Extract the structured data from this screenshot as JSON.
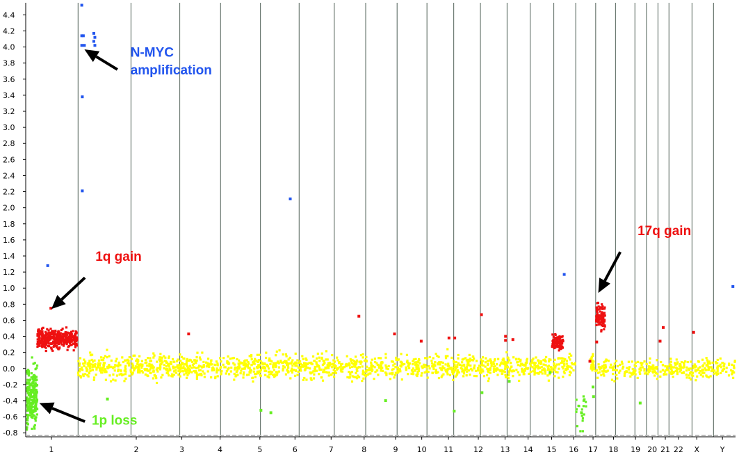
{
  "chart_data": {
    "type": "scatter",
    "ylim": [
      -0.85,
      4.55
    ],
    "y_ticks": [
      "-0.8",
      "-0.6",
      "-0.4",
      "-0.2",
      "0.0",
      "0.2",
      "0.4",
      "0.6",
      "0.8",
      "1.0",
      "1.2",
      "1.4",
      "1.6",
      "1.8",
      "2.0",
      "2.2",
      "2.4",
      "2.6",
      "2.8",
      "3.0",
      "3.2",
      "3.4",
      "3.6",
      "3.8",
      "4.0",
      "4.2",
      "4.4"
    ],
    "x_categories": [
      "1",
      "2",
      "3",
      "4",
      "5",
      "6",
      "7",
      "8",
      "9",
      "10",
      "11",
      "12",
      "13",
      "14",
      "15",
      "16",
      "17",
      "18",
      "19",
      "20",
      "21",
      "22",
      "X",
      "Y"
    ],
    "x_label_positions": [
      0.99,
      2.61,
      3.48,
      4.21,
      4.97,
      5.64,
      6.33,
      6.96,
      7.56,
      8.06,
      8.57,
      9.14,
      9.65,
      10.09,
      10.54,
      10.96,
      11.33,
      11.72,
      12.14,
      12.46,
      12.71,
      12.96,
      13.31,
      13.8
    ],
    "chromosome_boundaries": [
      1.5,
      2.51,
      3.44,
      4.22,
      4.98,
      5.72,
      6.39,
      6.99,
      7.59,
      8.16,
      8.67,
      9.18,
      9.69,
      10.13,
      10.58,
      11.0,
      11.38,
      11.76,
      12.13,
      12.35,
      12.57,
      12.78,
      13.22,
      13.63
    ],
    "x_range": [
      0.5,
      14.05
    ],
    "colors": {
      "neutral": "#ffff00",
      "loss": "#66ee22",
      "gain": "#ee1111",
      "amplification": "#2255ee",
      "boundary": "#6c7a72",
      "arrow": "#000000"
    },
    "series": [
      {
        "name": "amplification",
        "color": "#2255ee",
        "points": [
          [
            1.57,
            4.52
          ],
          [
            1.57,
            4.14
          ],
          [
            1.6,
            4.14
          ],
          [
            1.57,
            4.02
          ],
          [
            1.62,
            4.02
          ],
          [
            1.8,
            4.17
          ],
          [
            1.82,
            4.12
          ],
          [
            1.8,
            4.07
          ],
          [
            1.82,
            4.02
          ],
          [
            1.58,
            3.38
          ],
          [
            1.58,
            2.21
          ],
          [
            0.92,
            1.28
          ],
          [
            5.55,
            2.11
          ],
          [
            10.78,
            1.17
          ],
          [
            14.0,
            1.02
          ]
        ]
      },
      {
        "name": "gain",
        "color": "#ee1111",
        "points": [
          [
            0.98,
            0.75
          ],
          [
            3.61,
            0.43
          ],
          [
            6.86,
            0.65
          ],
          [
            7.54,
            0.43
          ],
          [
            8.05,
            0.34
          ],
          [
            8.58,
            0.38
          ],
          [
            8.69,
            0.38
          ],
          [
            9.2,
            0.67
          ],
          [
            9.66,
            0.4
          ],
          [
            9.66,
            0.35
          ],
          [
            9.8,
            0.36
          ],
          [
            11.4,
            0.33
          ],
          [
            11.27,
            0.09
          ],
          [
            12.61,
            0.34
          ],
          [
            12.67,
            0.51
          ],
          [
            13.25,
            0.45
          ]
        ]
      },
      {
        "name": "loss",
        "color": "#66ee22",
        "points": [
          [
            2.06,
            -0.38
          ],
          [
            4.99,
            -0.52
          ],
          [
            5.18,
            -0.55
          ],
          [
            7.37,
            -0.4
          ],
          [
            8.68,
            -0.53
          ],
          [
            9.21,
            -0.3
          ],
          [
            9.73,
            -0.16
          ],
          [
            10.51,
            -0.05
          ],
          [
            11.11,
            -0.55
          ],
          [
            11.34,
            -0.35
          ],
          [
            11.33,
            -0.23
          ],
          [
            12.23,
            -0.43
          ]
        ]
      }
    ],
    "dense_regions": [
      {
        "color": "#ffff00",
        "x_from": 1.5,
        "x_to": 11.0,
        "y_center": 0.02,
        "y_spread": 0.12,
        "count": 1500
      },
      {
        "color": "#ffff00",
        "x_from": 11.38,
        "x_to": 14.05,
        "y_center": 0.0,
        "y_spread": 0.1,
        "count": 330
      },
      {
        "color": "#ffff00",
        "x_from": 11.28,
        "x_to": 11.36,
        "y_center": 0.05,
        "y_spread": 0.12,
        "count": 25
      },
      {
        "color": "#66ee22",
        "x_from": 0.52,
        "x_to": 0.72,
        "y_center": -0.35,
        "y_spread": 0.3,
        "count": 220
      },
      {
        "color": "#66ee22",
        "x_from": 11.0,
        "x_to": 11.2,
        "y_center": -0.55,
        "y_spread": 0.18,
        "count": 20
      },
      {
        "color": "#ee1111",
        "x_from": 0.72,
        "x_to": 1.48,
        "y_center": 0.37,
        "y_spread": 0.1,
        "count": 380
      },
      {
        "color": "#ee1111",
        "x_from": 10.55,
        "x_to": 10.76,
        "y_center": 0.33,
        "y_spread": 0.08,
        "count": 90
      },
      {
        "color": "#ee1111",
        "x_from": 11.38,
        "x_to": 11.56,
        "y_center": 0.65,
        "y_spread": 0.12,
        "count": 90
      }
    ],
    "annotations": [
      {
        "text": "N-MYC",
        "color": "#2255ee",
        "text_x": 2.5,
        "text_y": 3.88,
        "arrow_from": [
          2.25,
          3.72
        ],
        "arrow_to": [
          1.62,
          3.97
        ]
      },
      {
        "text": "amplification",
        "color": "#2255ee",
        "text_x": 2.5,
        "text_y": 3.66,
        "arrow_from": null,
        "arrow_to": null
      },
      {
        "text": "1q gain",
        "color": "#ee1111",
        "text_x": 1.83,
        "text_y": 1.34,
        "arrow_from": [
          1.63,
          1.13
        ],
        "arrow_to": [
          0.99,
          0.74
        ]
      },
      {
        "text": "17q gain",
        "color": "#ee1111",
        "text_x": 12.18,
        "text_y": 1.66,
        "arrow_from": [
          11.85,
          1.45
        ],
        "arrow_to": [
          11.43,
          0.94
        ]
      },
      {
        "text": "1p loss",
        "color": "#66ee22",
        "text_x": 1.76,
        "text_y": -0.7,
        "arrow_from": [
          1.63,
          -0.66
        ],
        "arrow_to": [
          0.76,
          -0.43
        ]
      }
    ],
    "grid": false,
    "title": "",
    "xlabel": "",
    "ylabel": ""
  }
}
